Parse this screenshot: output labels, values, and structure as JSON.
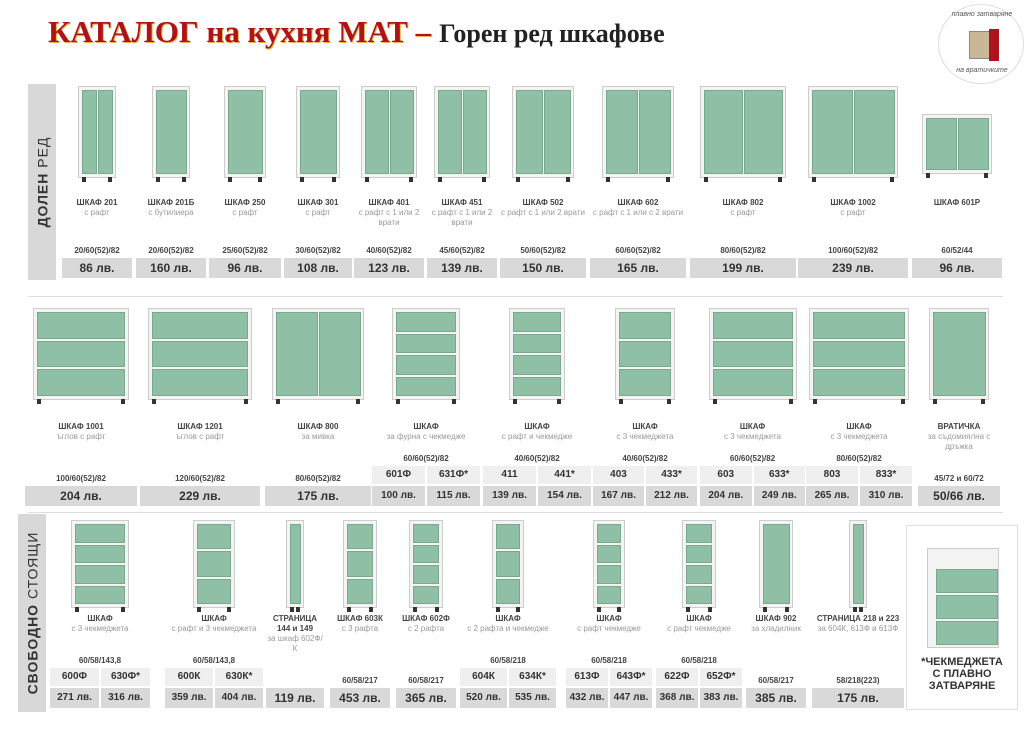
{
  "header": {
    "title_main": "КАТАЛОГ на кухня МАТ –",
    "title_sub": "Горен ред шкафове",
    "logo_text_top": "плавно затваряне",
    "logo_text_bottom": "на вратичките"
  },
  "colors": {
    "door_green": "#8fbfa5",
    "title_red": "#b0121b",
    "price_bg": "#d9d9d9"
  },
  "sections": [
    {
      "label_bold": "ДОЛЕН",
      "label_light": "РЕД",
      "items": [
        {
          "name": "ШКАФ 201",
          "desc": "с рафт",
          "dims": "20/60(52)/82",
          "codes": [],
          "prices": [
            "86 лв."
          ]
        },
        {
          "name": "ШКАФ 201Б",
          "desc": "с бутилиера",
          "dims": "20/60(52)/82",
          "codes": [],
          "prices": [
            "160 лв."
          ]
        },
        {
          "name": "ШКАФ 250",
          "desc": "с рафт",
          "dims": "25/60(52)/82",
          "codes": [],
          "prices": [
            "96 лв."
          ]
        },
        {
          "name": "ШКАФ 301",
          "desc": "с рафт",
          "dims": "30/60(52)/82",
          "codes": [],
          "prices": [
            "108 лв."
          ]
        },
        {
          "name": "ШКАФ 401",
          "desc": "с рафт с 1 или 2 врати",
          "dims": "40/60(52)/82",
          "codes": [],
          "prices": [
            "123 лв."
          ]
        },
        {
          "name": "ШКАФ 451",
          "desc": "с рафт с 1 или 2 врати",
          "dims": "45/60(52)/82",
          "codes": [],
          "prices": [
            "139 лв."
          ]
        },
        {
          "name": "ШКАФ 502",
          "desc": "с рафт с 1 или 2 врати",
          "dims": "50/60(52)/82",
          "codes": [],
          "prices": [
            "150 лв."
          ]
        },
        {
          "name": "ШКАФ 602",
          "desc": "с рафт с 1 или с 2 врати",
          "dims": "60/60(52)/82",
          "codes": [],
          "prices": [
            "165 лв."
          ]
        },
        {
          "name": "ШКАФ 802",
          "desc": "с рафт",
          "dims": "80/60(52)/82",
          "codes": [],
          "prices": [
            "199 лв."
          ]
        },
        {
          "name": "ШКАФ 1002",
          "desc": "с рафт",
          "dims": "100/60(52)/82",
          "codes": [],
          "prices": [
            "239 лв."
          ]
        },
        {
          "name": "ШКАФ 601Р",
          "desc": "",
          "dims": "60/52/44",
          "codes": [],
          "prices": [
            "96 лв."
          ]
        }
      ]
    },
    {
      "items": [
        {
          "name": "ШКАФ 1001",
          "desc": "ъглов с рафт",
          "dims": "100/60(52)/82",
          "codes": [],
          "prices": [
            "204 лв."
          ]
        },
        {
          "name": "ШКАФ 1201",
          "desc": "ъглов с рафт",
          "dims": "120/60(52)/82",
          "codes": [],
          "prices": [
            "229 лв."
          ]
        },
        {
          "name": "ШКАФ 800",
          "desc": "за мивка",
          "dims": "80/60(52)/82",
          "codes": [],
          "prices": [
            "175 лв."
          ]
        },
        {
          "name": "ШКАФ",
          "desc": "за фурна с чекмедже",
          "dims": "60/60(52)/82",
          "codes": [
            "601Ф",
            "631Ф*"
          ],
          "prices": [
            "100 лв.",
            "115 лв."
          ]
        },
        {
          "name": "ШКАФ",
          "desc": "с рафт и чекмедже",
          "dims": "40/60(52)/82",
          "codes": [
            "411",
            "441*"
          ],
          "prices": [
            "139 лв.",
            "154 лв."
          ]
        },
        {
          "name": "ШКАФ",
          "desc": "с 3 чекмеджета",
          "dims": "40/60(52)/82",
          "codes": [
            "403",
            "433*"
          ],
          "prices": [
            "167 лв.",
            "212 лв."
          ]
        },
        {
          "name": "ШКАФ",
          "desc": "с 3 чекмеджета",
          "dims": "60/60(52)/82",
          "codes": [
            "603",
            "633*"
          ],
          "prices": [
            "204 лв.",
            "249 лв."
          ]
        },
        {
          "name": "ШКАФ",
          "desc": "с 3 чекмеджета",
          "dims": "80/60(52)/82",
          "codes": [
            "803",
            "833*"
          ],
          "prices": [
            "265 лв.",
            "310 лв."
          ]
        },
        {
          "name": "ВРАТИЧКА",
          "desc": "за съдомиялна с дръжка",
          "dims": "45/72 и 60/72",
          "codes": [],
          "prices": [
            "50/66 лв."
          ]
        }
      ]
    },
    {
      "label_bold": "СВОБОДНО",
      "label_light": "СТОЯЩИ",
      "items": [
        {
          "name": "ШКАФ",
          "desc": "с 3 чекмеджета",
          "dims": "60/58/143,8",
          "codes": [
            "600Ф",
            "630Ф*"
          ],
          "prices": [
            "271 лв.",
            "316 лв."
          ]
        },
        {
          "name": "ШКАФ",
          "desc": "с рафт и 3 чекмеджета",
          "dims": "60/58/143,8",
          "codes": [
            "600К",
            "630К*"
          ],
          "prices": [
            "359 лв.",
            "404 лв."
          ]
        },
        {
          "name": "СТРАНИЦА 144 и 149",
          "desc": "за шкаф 602Ф/К",
          "dims": "",
          "codes": [],
          "prices": [
            "119 лв."
          ]
        },
        {
          "name": "ШКАФ 603К",
          "desc": "с 3 рафта",
          "dims": "60/58/217",
          "codes": [],
          "prices": [
            "453 лв."
          ]
        },
        {
          "name": "ШКАФ 602Ф",
          "desc": "с 2 рафта",
          "dims": "60/58/217",
          "codes": [],
          "prices": [
            "365 лв."
          ]
        },
        {
          "name": "ШКАФ",
          "desc": "с 2 рафта и чекмедже",
          "dims": "60/58/218",
          "codes": [
            "604К",
            "634К*"
          ],
          "prices": [
            "520 лв.",
            "535 лв."
          ]
        },
        {
          "name": "ШКАФ",
          "desc": "с рафт чекмедже",
          "dims": "60/58/218",
          "codes": [
            "613Ф",
            "643Ф*"
          ],
          "prices": [
            "432 лв.",
            "447 лв."
          ]
        },
        {
          "name": "ШКАФ",
          "desc": "с рафт чекмедже",
          "dims": "60/58/218",
          "codes": [
            "622Ф",
            "652Ф*"
          ],
          "prices": [
            "368 лв.",
            "383 лв."
          ]
        },
        {
          "name": "ШКАФ 902",
          "desc": "за хладилник",
          "dims": "60/58/217",
          "codes": [],
          "prices": [
            "385 лв."
          ]
        },
        {
          "name": "СТРАНИЦА 218 и 223",
          "desc": "за 604К, 613Ф и 613Ф",
          "dims": "58/218(223)",
          "codes": [],
          "prices": [
            "175 лв."
          ]
        }
      ]
    }
  ],
  "note": {
    "text": "*ЧЕКМЕДЖЕТА\nС ПЛАВНО\nЗАТВАРЯНЕ"
  }
}
